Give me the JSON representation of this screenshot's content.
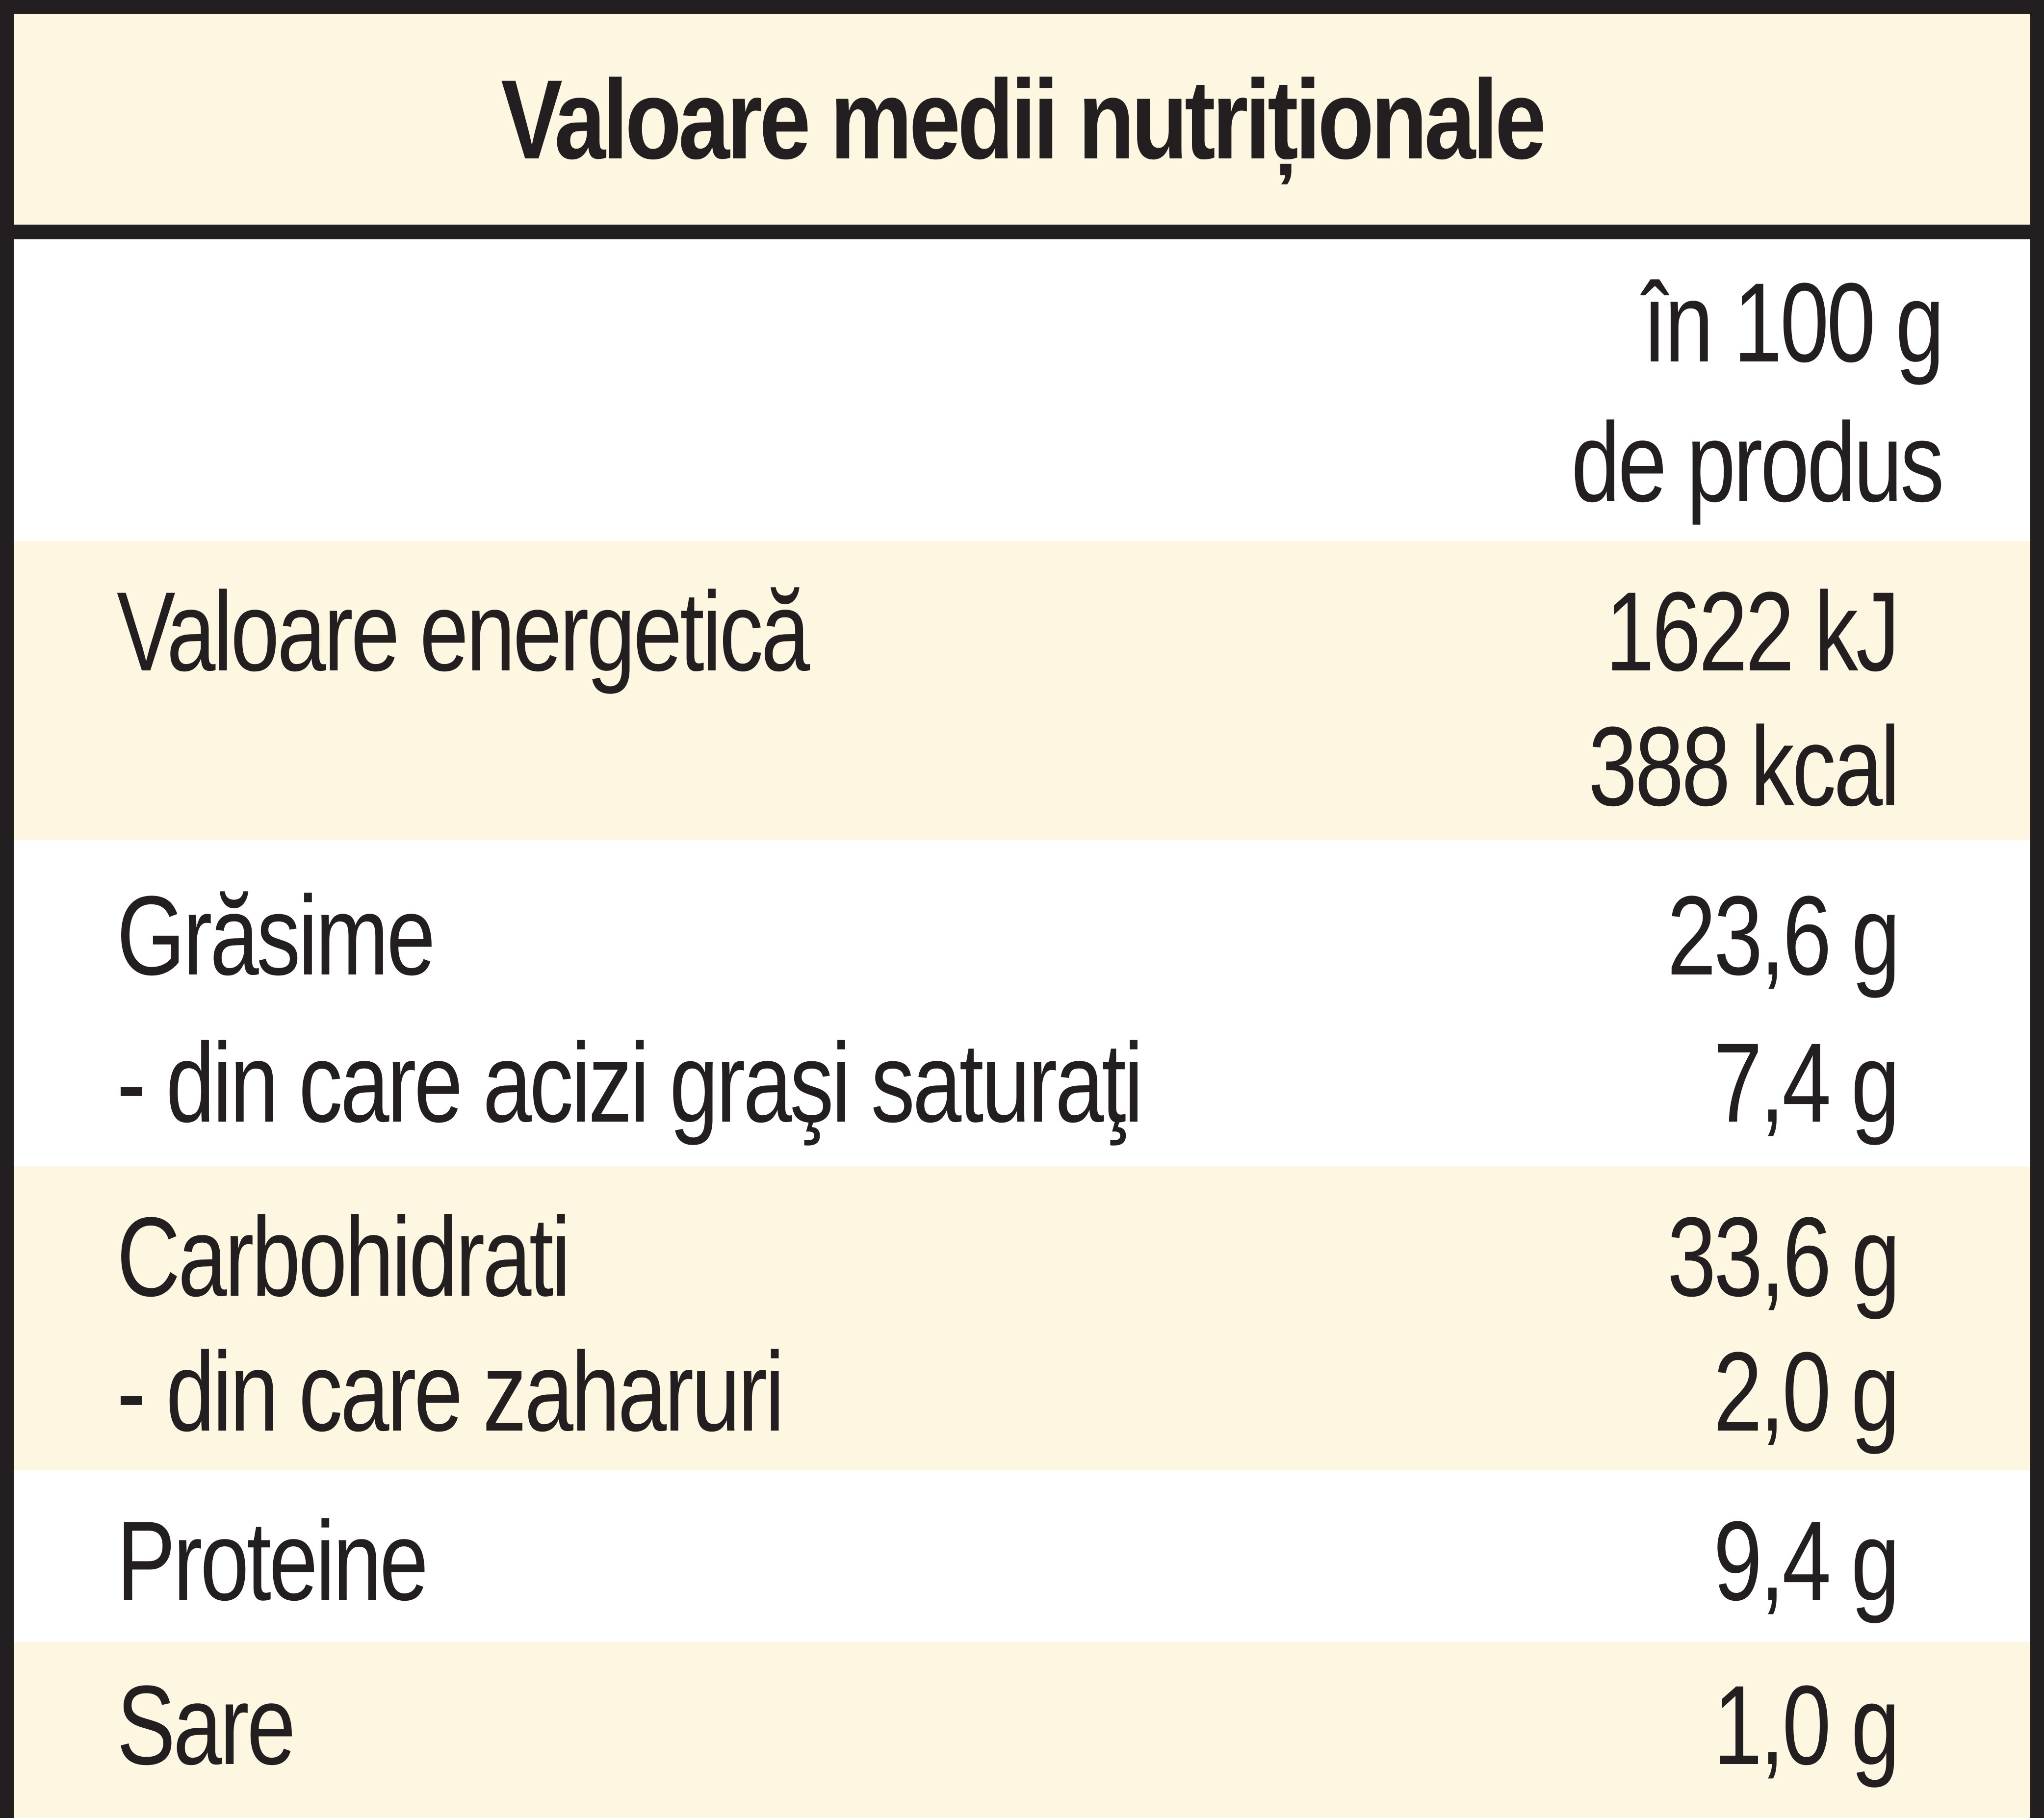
{
  "title": "Valoare medii nutriționale",
  "header": {
    "per_line1": "în 100 g",
    "per_line2": "de produs"
  },
  "rows": [
    {
      "label": "Valoare energetică",
      "value": "1622 kJ",
      "label2": "",
      "value2": "388 kcal"
    },
    {
      "label": "Grăsime",
      "value": "23,6 g",
      "label2": "- din care acizi graşi saturaţi",
      "value2": "7,4 g"
    },
    {
      "label": "Carbohidrati",
      "value": "33,6 g",
      "label2": "- din care zaharuri",
      "value2": "2,0 g"
    },
    {
      "label": "Proteine",
      "value": "9,4 g"
    },
    {
      "label": "Sare",
      "value": "1,0 g"
    }
  ],
  "colors": {
    "shade": "#fdf6e0",
    "ink": "#231f20"
  }
}
